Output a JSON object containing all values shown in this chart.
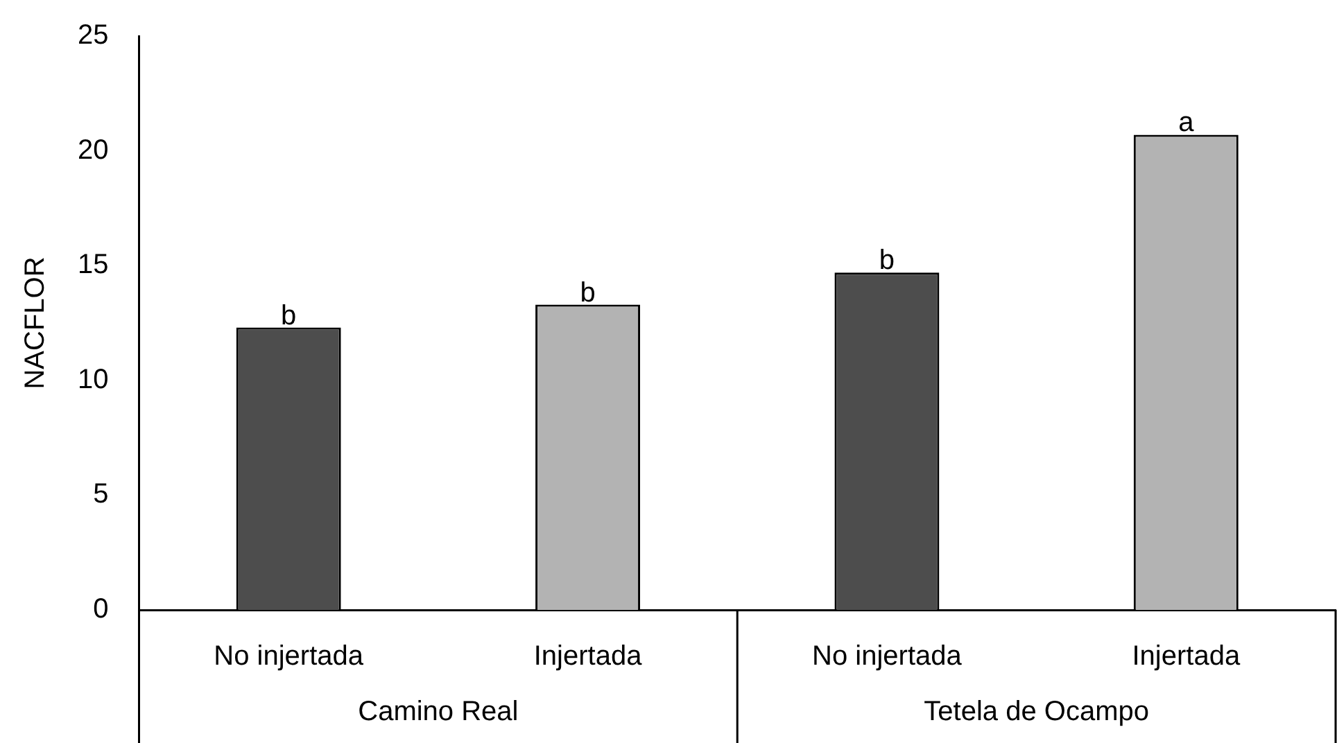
{
  "chart_data": {
    "type": "bar",
    "ylabel": "NACFLOR",
    "categories": [
      "No injertada",
      "Injertada",
      "No injertada",
      "Injertada"
    ],
    "values": [
      12.3,
      13.3,
      14.7,
      20.7
    ],
    "colors": [
      "#4d4d4d",
      "#b3b3b3",
      "#4d4d4d",
      "#b3b3b3"
    ],
    "value_labels": [
      "b",
      "b",
      "b",
      "a"
    ],
    "annotations": [
      "Camino Real",
      "Tetela de Ocampo"
    ],
    "ylim": [
      0,
      25
    ],
    "yticks": [
      0,
      5,
      10,
      15,
      20,
      25
    ],
    "grid": false,
    "legend": false
  }
}
